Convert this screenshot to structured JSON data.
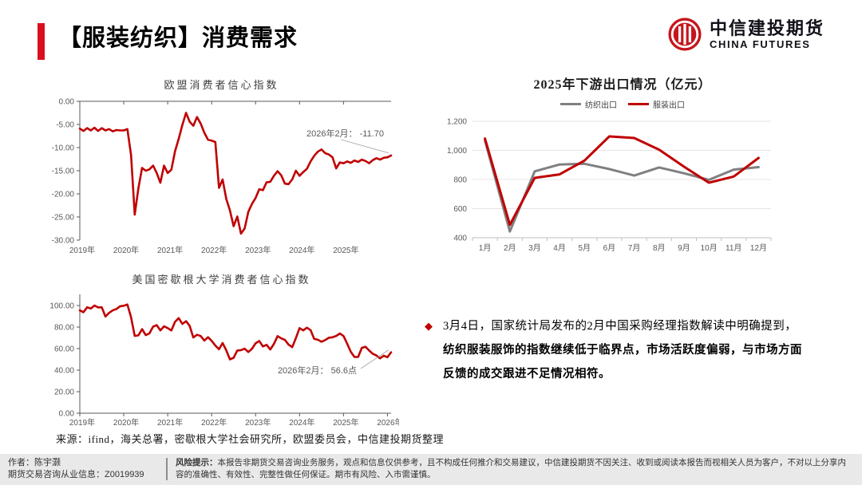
{
  "header": {
    "title": "【服装纺织】消费需求",
    "accent_color": "#DA0E1E",
    "logo": {
      "cn": "中信建投期货",
      "en": "CHINA FUTURES",
      "brand_color": "#C5161D"
    }
  },
  "chart_data": {
    "eu": {
      "type": "line",
      "title": "欧盟消费者信心指数",
      "x_span": "2019-01 to 2026-02, monthly",
      "x_tick_labels": [
        "2019年",
        "2020年",
        "2021年",
        "2022年",
        "2023年",
        "2024年",
        "2025年"
      ],
      "x_tick_month_index": [
        0,
        12,
        24,
        36,
        48,
        60,
        72
      ],
      "ylim": [
        -30,
        0
      ],
      "y_ticks": [
        0,
        -5,
        -10,
        -15,
        -20,
        -25,
        -30
      ],
      "y_tick_labels": [
        "0.00",
        "-5.00",
        "-10.00",
        "-15.00",
        "-20.00",
        "-25.00",
        "-30.00"
      ],
      "annotation": "2026年2月： -11.70",
      "series": [
        {
          "name": "欧盟消费者信心指数",
          "color": "#C00000",
          "values": [
            -5.9,
            -6.4,
            -5.8,
            -6.3,
            -5.7,
            -6.4,
            -5.8,
            -6.3,
            -6.0,
            -6.5,
            -6.2,
            -6.3,
            -6.3,
            -6.0,
            -11.6,
            -24.5,
            -18.8,
            -14.4,
            -15.0,
            -14.7,
            -13.9,
            -15.5,
            -17.6,
            -13.9,
            -15.5,
            -14.8,
            -10.8,
            -8.1,
            -5.1,
            -2.5,
            -4.4,
            -5.3,
            -3.4,
            -4.8,
            -6.8,
            -8.3,
            -8.5,
            -8.8,
            -18.7,
            -16.9,
            -21.1,
            -23.6,
            -27.0,
            -24.9,
            -28.6,
            -27.5,
            -23.9,
            -22.2,
            -20.9,
            -19.0,
            -19.2,
            -17.5,
            -17.4,
            -16.1,
            -15.1,
            -16.0,
            -17.8,
            -17.9,
            -16.9,
            -15.0,
            -16.1,
            -15.3,
            -14.6,
            -13.0,
            -11.8,
            -10.9,
            -10.4,
            -11.2,
            -11.5,
            -12.1,
            -14.5,
            -13.2,
            -13.4,
            -13.0,
            -13.3,
            -12.8,
            -13.1,
            -12.6,
            -12.9,
            -13.4,
            -12.7,
            -12.3,
            -12.6,
            -12.2,
            -12.1,
            -11.7
          ]
        }
      ]
    },
    "michigan": {
      "type": "line",
      "title": "美国密歇根大学消费者信心指数",
      "x_span": "2019-01 to 2026-02, monthly",
      "x_tick_labels": [
        "2019年",
        "2020年",
        "2021年",
        "2022年",
        "2023年",
        "2024年",
        "2025年",
        "2026年"
      ],
      "x_tick_month_index": [
        0,
        12,
        24,
        36,
        48,
        60,
        72,
        84
      ],
      "ylim": [
        0,
        100
      ],
      "y_ticks": [
        100,
        80,
        60,
        40,
        20,
        0
      ],
      "y_tick_labels": [
        "100.00",
        "80.00",
        "60.00",
        "40.00",
        "20.00",
        "0.00"
      ],
      "annotation": "2026年2月： 56.6点",
      "series": [
        {
          "name": "美国密歇根大学消费者信心指数",
          "color": "#C00000",
          "values": [
            95.5,
            93.8,
            98.4,
            97.2,
            100.0,
            98.2,
            98.4,
            89.8,
            93.2,
            95.5,
            96.8,
            99.3,
            99.8,
            101.0,
            89.1,
            71.8,
            72.3,
            78.1,
            72.5,
            74.1,
            80.4,
            81.8,
            76.9,
            80.7,
            79.0,
            76.8,
            84.9,
            88.3,
            82.9,
            85.5,
            81.2,
            70.3,
            72.8,
            71.7,
            67.4,
            70.6,
            67.2,
            62.8,
            59.4,
            65.2,
            58.4,
            50.0,
            51.5,
            58.2,
            58.6,
            59.9,
            56.8,
            59.7,
            64.9,
            67.0,
            62.0,
            63.5,
            59.2,
            64.4,
            71.6,
            69.5,
            68.1,
            63.8,
            61.3,
            69.7,
            79.0,
            76.9,
            79.4,
            77.2,
            69.1,
            68.2,
            66.4,
            67.9,
            70.1,
            70.5,
            71.8,
            74.0,
            71.7,
            64.7,
            57.0,
            52.2,
            52.2,
            60.7,
            61.7,
            58.2,
            55.1,
            53.6,
            51.0,
            53.4,
            52.0,
            56.6
          ]
        }
      ]
    },
    "exports": {
      "type": "line",
      "title": "2025年下游出口情况（亿元）",
      "categories": [
        "1月",
        "2月",
        "3月",
        "4月",
        "5月",
        "6月",
        "7月",
        "8月",
        "9月",
        "10月",
        "11月",
        "12月"
      ],
      "ylim": [
        400,
        1200
      ],
      "y_ticks": [
        1200,
        1000,
        800,
        600,
        400
      ],
      "y_tick_labels": [
        "1,200",
        "1,000",
        "800",
        "600",
        "400"
      ],
      "legend_position": "top",
      "series": [
        {
          "name": "纺织出口",
          "color": "#808080",
          "values": [
            1068,
            443,
            856,
            903,
            908,
            872,
            827,
            883,
            843,
            797,
            868,
            885
          ]
        },
        {
          "name": "服装出口",
          "color": "#C00000",
          "values": [
            1081,
            488,
            811,
            835,
            930,
            1096,
            1085,
            1005,
            888,
            778,
            820,
            948
          ]
        }
      ]
    }
  },
  "commentary": {
    "bullet_icon": "◆",
    "lead": "3月4日，国家统计局发布的2月中国采购经理指数解读中明确提到，",
    "emphasis": "纺织服装服饰的指数继续低于临界点，市场活跃度偏弱，与市场方面反馈的成交跟进不足情况相符。"
  },
  "source_note": "来源：ifind，海关总署，密歇根大学社会研究所，欧盟委员会，中信建投期货整理",
  "footer": {
    "author_line": "作者：陈宇灏",
    "license_line": "期货交易咨询从业信息：Z0019939",
    "risk_label": "风险提示：",
    "risk_text": "本报告非期货交易咨询业务服务，观点和信息仅供参考，且不构成任何推介和交易建议，中信建投期货不因关注、收到或阅读本报告而视相关人员为客户，不对以上分享内容的准确性、有效性、完整性做任何保证。期市有风险、入市需谨慎。"
  }
}
